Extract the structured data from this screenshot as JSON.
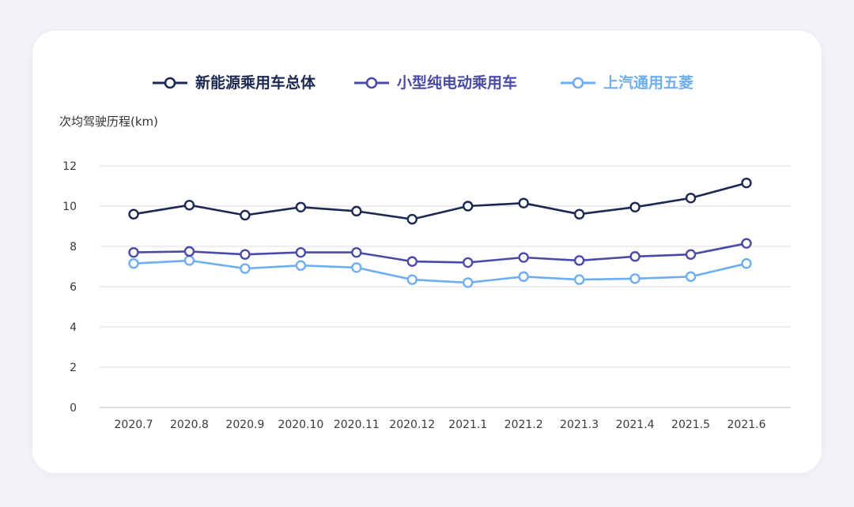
{
  "chart_data": {
    "type": "line",
    "title": "",
    "xlabel": "",
    "ylabel": "次均驾驶历程(km)",
    "ylim": [
      0,
      12
    ],
    "yticks": [
      "0",
      "2",
      "4",
      "6",
      "8",
      "10",
      "12"
    ],
    "grid": true,
    "legend_position": "top",
    "categories": [
      "2020.7",
      "2020.8",
      "2020.9",
      "2020.10",
      "2020.11",
      "2020.12",
      "2021.1",
      "2021.2",
      "2021.3",
      "2021.4",
      "2021.5",
      "2021.6"
    ],
    "series": [
      {
        "name": "新能源乘用车总体",
        "color": "#1b2850",
        "values": [
          9.6,
          10.05,
          9.55,
          9.95,
          9.75,
          9.35,
          10.0,
          10.15,
          9.6,
          9.95,
          10.4,
          11.15
        ]
      },
      {
        "name": "小型纯电动乘用车",
        "color": "#4b4aa6",
        "values": [
          7.7,
          7.75,
          7.6,
          7.7,
          7.7,
          7.25,
          7.2,
          7.45,
          7.3,
          7.5,
          7.6,
          8.15
        ]
      },
      {
        "name": "上汽通用五菱",
        "color": "#6eaef0",
        "values": [
          7.15,
          7.3,
          6.9,
          7.05,
          6.95,
          6.35,
          6.2,
          6.5,
          6.35,
          6.4,
          6.5,
          7.15
        ]
      }
    ]
  }
}
